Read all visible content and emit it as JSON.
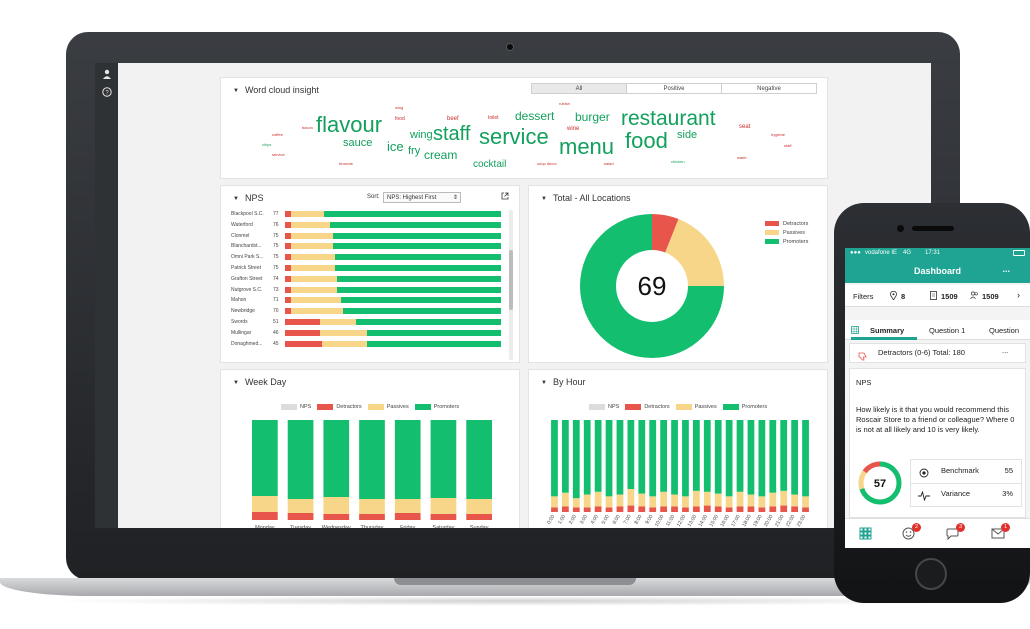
{
  "colors": {
    "detractors": "#e8564b",
    "passives": "#f7d68a",
    "promoters": "#13bf6e",
    "nps": "#dcdcdc",
    "brand_teal": "#1fa392"
  },
  "sidebar": {
    "icons": [
      "user-icon",
      "help-icon"
    ]
  },
  "word_cloud": {
    "title": "Word cloud insight",
    "filters": [
      "All",
      "Positive",
      "Negative"
    ],
    "words": [
      {
        "text": "flavour",
        "size": 22,
        "tone": "g"
      },
      {
        "text": "restaurant",
        "size": 21,
        "tone": "g"
      },
      {
        "text": "service",
        "size": 22,
        "tone": "g"
      },
      {
        "text": "staff",
        "size": 20,
        "tone": "g"
      },
      {
        "text": "menu",
        "size": 22,
        "tone": "g"
      },
      {
        "text": "food",
        "size": 22,
        "tone": "g"
      },
      {
        "text": "dessert",
        "size": 12,
        "tone": "g"
      },
      {
        "text": "burger",
        "size": 12,
        "tone": "g"
      },
      {
        "text": "sauce",
        "size": 11,
        "tone": "g"
      },
      {
        "text": "ice",
        "size": 13,
        "tone": "g"
      },
      {
        "text": "fry",
        "size": 11,
        "tone": "g"
      },
      {
        "text": "cream",
        "size": 12,
        "tone": "g"
      },
      {
        "text": "wing",
        "size": 11,
        "tone": "g"
      },
      {
        "text": "side",
        "size": 11,
        "tone": "g"
      },
      {
        "text": "cocktail",
        "size": 10,
        "tone": "g"
      },
      {
        "text": "beef",
        "size": 6,
        "tone": "r"
      },
      {
        "text": "toilet",
        "size": 5,
        "tone": "r"
      },
      {
        "text": "wine",
        "size": 6,
        "tone": "r"
      },
      {
        "text": "seat",
        "size": 6,
        "tone": "r"
      },
      {
        "text": "food",
        "size": 5,
        "tone": "r"
      },
      {
        "text": "wing",
        "size": 4,
        "tone": "r"
      },
      {
        "text": "rubish",
        "size": 4,
        "tone": "r"
      },
      {
        "text": "bacon",
        "size": 4,
        "tone": "r"
      },
      {
        "text": "coffee",
        "size": 4,
        "tone": "r"
      },
      {
        "text": "chips",
        "size": 4,
        "tone": "g"
      },
      {
        "text": "service",
        "size": 4,
        "tone": "r"
      },
      {
        "text": "brownie",
        "size": 4,
        "tone": "r"
      },
      {
        "text": "soup decor",
        "size": 4,
        "tone": "r"
      },
      {
        "text": "salad",
        "size": 4,
        "tone": "r"
      },
      {
        "text": "chicken",
        "size": 4,
        "tone": "g"
      },
      {
        "text": "water",
        "size": 4,
        "tone": "r"
      },
      {
        "text": "hygiene",
        "size": 4,
        "tone": "r"
      },
      {
        "text": "staff",
        "size": 4,
        "tone": "r"
      }
    ]
  },
  "nps_panel": {
    "title": "NPS",
    "sort_label": "Sort:",
    "sort_value": "NPS: Highest First",
    "rows": [
      {
        "name": "Blackpool S.C.",
        "nps": 77,
        "d": 3,
        "p": 15,
        "pr": 82
      },
      {
        "name": "Waterford",
        "nps": 76,
        "d": 3,
        "p": 18,
        "pr": 79
      },
      {
        "name": "Clonmel",
        "nps": 75,
        "d": 3,
        "p": 19,
        "pr": 78
      },
      {
        "name": "Blanchardst...",
        "nps": 75,
        "d": 3,
        "p": 19,
        "pr": 78
      },
      {
        "name": "Omni Park S...",
        "nps": 75,
        "d": 3,
        "p": 20,
        "pr": 77
      },
      {
        "name": "Patrick Street",
        "nps": 75,
        "d": 3,
        "p": 20,
        "pr": 77
      },
      {
        "name": "Grafton Street",
        "nps": 74,
        "d": 3,
        "p": 21,
        "pr": 76
      },
      {
        "name": "Nutgrove S.C.",
        "nps": 73,
        "d": 3,
        "p": 21,
        "pr": 76
      },
      {
        "name": "Mahon",
        "nps": 71,
        "d": 3,
        "p": 23,
        "pr": 74
      },
      {
        "name": "Newbridge",
        "nps": 70,
        "d": 3,
        "p": 24,
        "pr": 73
      },
      {
        "name": "Swords",
        "nps": 51,
        "d": 16,
        "p": 17,
        "pr": 67
      },
      {
        "name": "Mullingar",
        "nps": 46,
        "d": 16,
        "p": 22,
        "pr": 62
      },
      {
        "name": "Donaghmed...",
        "nps": 45,
        "d": 17,
        "p": 21,
        "pr": 62
      }
    ]
  },
  "donut": {
    "title": "Total - All Locations",
    "score": "69",
    "legend": [
      "Detractors",
      "Passives",
      "Promoters"
    ],
    "slices": [
      {
        "name": "Detractors",
        "value": 6
      },
      {
        "name": "Passives",
        "value": 19
      },
      {
        "name": "Promoters",
        "value": 75
      }
    ]
  },
  "chart_data": [
    {
      "type": "bar",
      "title": "Week Day",
      "legend": [
        "NPS",
        "Detractors",
        "Passives",
        "Promoters"
      ],
      "categories": [
        "Monday",
        "Tuesday",
        "Wednesday",
        "Thursday",
        "Friday",
        "Saturday",
        "Sunday"
      ],
      "series": [
        {
          "name": "Detractors",
          "values": [
            8,
            7,
            6,
            6,
            7,
            6,
            6
          ]
        },
        {
          "name": "Passives",
          "values": [
            16,
            14,
            17,
            15,
            14,
            16,
            15
          ]
        },
        {
          "name": "Promoters",
          "values": [
            76,
            79,
            77,
            79,
            79,
            78,
            79
          ]
        }
      ]
    },
    {
      "type": "bar",
      "title": "By Hour",
      "legend": [
        "NPS",
        "Detractors",
        "Passives",
        "Promoters"
      ],
      "categories": [
        "0:00",
        "1:00",
        "2:00",
        "3:00",
        "4:00",
        "5:00",
        "6:00",
        "7:00",
        "8:00",
        "9:00",
        "10:00",
        "11:00",
        "12:00",
        "13:00",
        "14:00",
        "15:00",
        "16:00",
        "17:00",
        "18:00",
        "19:00",
        "20:00",
        "21:00",
        "22:00",
        "23:00"
      ],
      "series": [
        {
          "name": "Detractors",
          "values": [
            5,
            6,
            5,
            5,
            6,
            5,
            6,
            7,
            6,
            5,
            6,
            6,
            5,
            6,
            7,
            6,
            5,
            6,
            6,
            5,
            6,
            7,
            6,
            5
          ]
        },
        {
          "name": "Passives",
          "values": [
            12,
            15,
            10,
            14,
            16,
            12,
            13,
            18,
            14,
            12,
            16,
            13,
            12,
            17,
            15,
            14,
            12,
            16,
            13,
            12,
            15,
            16,
            13,
            12
          ]
        },
        {
          "name": "Promoters",
          "values": [
            83,
            79,
            85,
            81,
            78,
            83,
            81,
            75,
            80,
            83,
            78,
            81,
            83,
            77,
            78,
            80,
            83,
            78,
            81,
            83,
            79,
            77,
            81,
            83
          ]
        }
      ]
    }
  ],
  "phone": {
    "status": {
      "carrier": "vodafone IE",
      "network": "4G",
      "time": "17:31"
    },
    "title": "Dashboard",
    "more": "...",
    "filters": {
      "label": "Filters",
      "locations": "8",
      "count1": "1509",
      "count2": "1509"
    },
    "tabs": [
      "Summary",
      "Question 1",
      "Question"
    ],
    "detractors_row": "Detractors (0-6) Total: 180",
    "detractors_more": "...",
    "section": "NPS",
    "question": "How likely is it that you would recommend this Roscair Store to a friend or colleague? Where 0 is not at all likely and 10 is very likely.",
    "score": "57",
    "stats": [
      {
        "label": "Benchmark",
        "value": "55"
      },
      {
        "label": "Variance",
        "value": "3%"
      }
    ],
    "nav_badges": [
      "2",
      "3",
      "1"
    ]
  }
}
